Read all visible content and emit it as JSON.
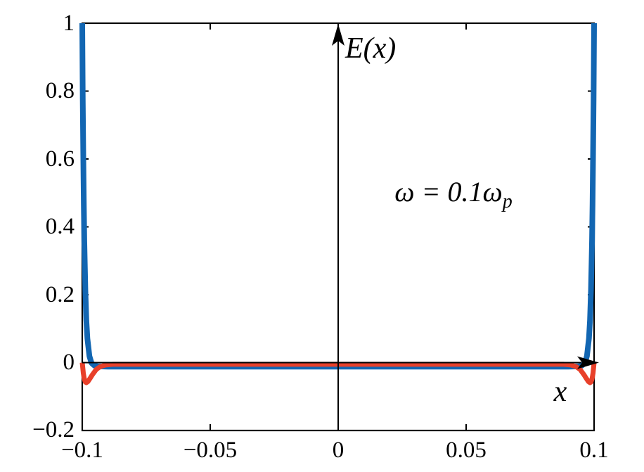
{
  "chart_data": {
    "type": "line",
    "title": "",
    "xlabel": "x",
    "ylabel": "E(x)",
    "annotation": {
      "main": "ω = 0.1ω",
      "sub": "p"
    },
    "xlim": [
      -0.1,
      0.1
    ],
    "ylim": [
      -0.2,
      1
    ],
    "xticks": [
      -0.1,
      -0.05,
      0,
      0.05,
      0.1
    ],
    "xtick_labels": [
      "−0.1",
      "−0.05",
      "0",
      "0.05",
      "0.1"
    ],
    "yticks": [
      -0.2,
      0,
      0.2,
      0.4,
      0.6,
      0.8,
      1
    ],
    "ytick_labels": [
      "−0.2",
      "0",
      "0.2",
      "0.4",
      "0.6",
      "0.8",
      "1"
    ],
    "grid": false,
    "legend": "none",
    "axis_arrows": {
      "vertical_at_x": 0,
      "horizontal_at_y": 0
    },
    "colors": {
      "axes": "#000000",
      "blue_series": "#1266b2",
      "red_series": "#e8402a"
    },
    "series": [
      {
        "name": "blue",
        "color": "#1266b2",
        "description": "Field near 0 (≈ −0.012) in interior with sharp boundary layers rising to 1 at x = ±0.1",
        "points": [
          [
            -0.1,
            1.0
          ],
          [
            -0.0998,
            0.776
          ],
          [
            -0.0996,
            0.602
          ],
          [
            -0.0994,
            0.466
          ],
          [
            -0.0992,
            0.36
          ],
          [
            -0.0988,
            0.214
          ],
          [
            -0.0984,
            0.125
          ],
          [
            -0.098,
            0.071
          ],
          [
            -0.0972,
            0.019
          ],
          [
            -0.0964,
            -0.001
          ],
          [
            -0.0952,
            -0.009
          ],
          [
            -0.094,
            -0.011
          ],
          [
            -0.09,
            -0.012
          ],
          [
            -0.08,
            -0.012
          ],
          [
            -0.06,
            -0.012
          ],
          [
            -0.03,
            -0.012
          ],
          [
            0,
            -0.012
          ],
          [
            0.03,
            -0.012
          ],
          [
            0.06,
            -0.012
          ],
          [
            0.08,
            -0.012
          ],
          [
            0.09,
            -0.012
          ],
          [
            0.094,
            -0.011
          ],
          [
            0.0952,
            -0.009
          ],
          [
            0.0964,
            -0.001
          ],
          [
            0.0972,
            0.019
          ],
          [
            0.098,
            0.071
          ],
          [
            0.0984,
            0.125
          ],
          [
            0.0988,
            0.214
          ],
          [
            0.0992,
            0.36
          ],
          [
            0.0994,
            0.466
          ],
          [
            0.0996,
            0.602
          ],
          [
            0.0998,
            0.776
          ],
          [
            0.1,
            1.0
          ]
        ]
      },
      {
        "name": "red",
        "color": "#e8402a",
        "description": "Field ≈ −0.005 in interior with negative dips to ≈ −0.06 just inside x = ±0.1, returning to 0 at the walls",
        "points": [
          [
            -0.1,
            0
          ],
          [
            -0.0996,
            -0.031
          ],
          [
            -0.0992,
            -0.048
          ],
          [
            -0.0988,
            -0.057
          ],
          [
            -0.0984,
            -0.059
          ],
          [
            -0.0978,
            -0.056
          ],
          [
            -0.097,
            -0.047
          ],
          [
            -0.096,
            -0.035
          ],
          [
            -0.0945,
            -0.02
          ],
          [
            -0.093,
            -0.012
          ],
          [
            -0.091,
            -0.007
          ],
          [
            -0.088,
            -0.005
          ],
          [
            -0.08,
            -0.005
          ],
          [
            -0.06,
            -0.005
          ],
          [
            -0.03,
            -0.005
          ],
          [
            0,
            -0.005
          ],
          [
            0.03,
            -0.005
          ],
          [
            0.06,
            -0.005
          ],
          [
            0.08,
            -0.005
          ],
          [
            0.088,
            -0.005
          ],
          [
            0.091,
            -0.007
          ],
          [
            0.093,
            -0.012
          ],
          [
            0.0945,
            -0.02
          ],
          [
            0.096,
            -0.035
          ],
          [
            0.097,
            -0.047
          ],
          [
            0.0978,
            -0.056
          ],
          [
            0.0984,
            -0.059
          ],
          [
            0.0988,
            -0.057
          ],
          [
            0.0992,
            -0.048
          ],
          [
            0.0996,
            -0.031
          ],
          [
            0.1,
            0
          ]
        ]
      }
    ]
  }
}
